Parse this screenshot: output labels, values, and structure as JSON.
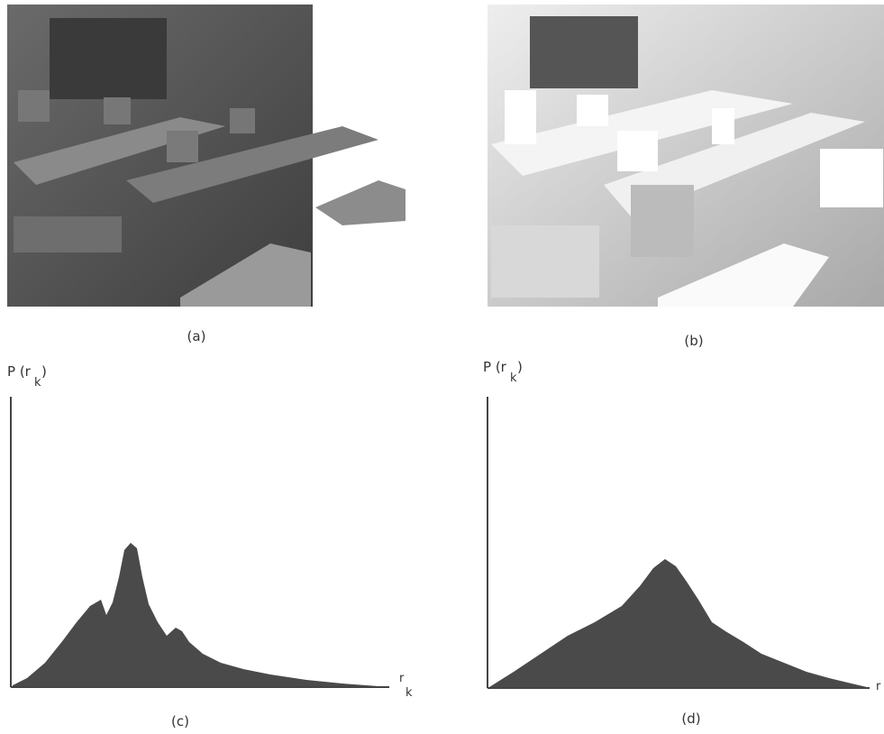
{
  "panels": [
    {
      "label": "(a)"
    },
    {
      "label": "(b)"
    },
    {
      "label": "(c)",
      "y_axis_label": "P (r",
      "y_axis_sub": "k",
      "y_axis_close": ")",
      "x_axis_label": "r",
      "x_axis_sub": "k"
    },
    {
      "label": "(d)",
      "y_axis_label": "P (r",
      "y_axis_sub": "k",
      "y_axis_close": ")",
      "x_axis_label": "r"
    }
  ]
}
